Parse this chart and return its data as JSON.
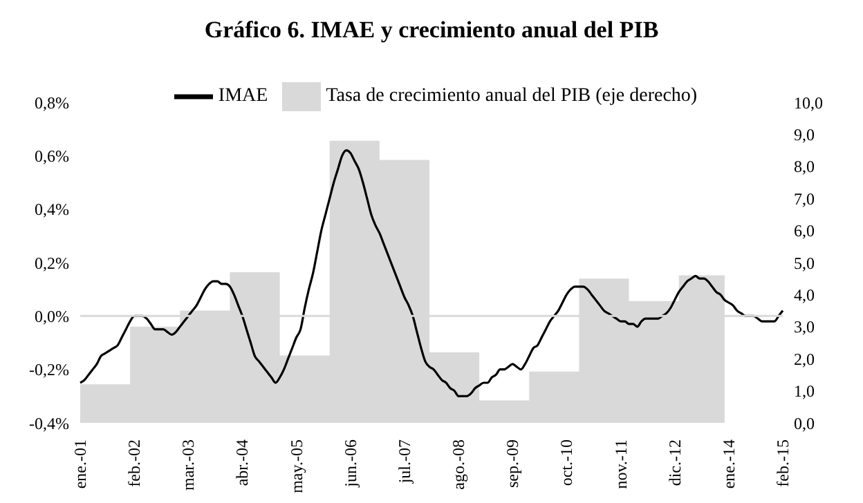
{
  "chart_data": {
    "type": "line",
    "title": "Gráfico 6. IMAE y crecimiento anual del PIB",
    "categories": [
      "ene.-01",
      null,
      null,
      null,
      null,
      null,
      null,
      null,
      null,
      null,
      null,
      null,
      null,
      "feb.-02",
      null,
      null,
      null,
      null,
      null,
      null,
      null,
      null,
      null,
      null,
      null,
      null,
      "mar.-03",
      null,
      null,
      null,
      null,
      null,
      null,
      null,
      null,
      null,
      null,
      null,
      null,
      "abr.-04",
      null,
      null,
      null,
      null,
      null,
      null,
      null,
      null,
      null,
      null,
      null,
      null,
      "may.-05",
      null,
      null,
      null,
      null,
      null,
      null,
      null,
      null,
      null,
      null,
      null,
      null,
      "jun.-06",
      null,
      null,
      null,
      null,
      null,
      null,
      null,
      null,
      null,
      null,
      null,
      null,
      "jul.-07",
      null,
      null,
      null,
      null,
      null,
      null,
      null,
      null,
      null,
      null,
      null,
      null,
      "ago.-08",
      null,
      null,
      null,
      null,
      null,
      null,
      null,
      null,
      null,
      null,
      null,
      null,
      "sep.-09",
      null,
      null,
      null,
      null,
      null,
      null,
      null,
      null,
      null,
      null,
      null,
      null,
      "oct.-10",
      null,
      null,
      null,
      null,
      null,
      null,
      null,
      null,
      null,
      null,
      null,
      null,
      "nov.-11",
      null,
      null,
      null,
      null,
      null,
      null,
      null,
      null,
      null,
      null,
      null,
      null,
      "dic.-12",
      null,
      null,
      null,
      null,
      null,
      null,
      null,
      null,
      null,
      null,
      null,
      null,
      "ene.-14",
      null,
      null,
      null,
      null,
      null,
      null,
      null,
      null,
      null,
      null,
      null,
      null,
      "feb.-15"
    ],
    "series": [
      {
        "name": "Tasa de crecimiento anual del PIB (eje derecho)",
        "type": "area",
        "axis": "y2",
        "color": "#d9d9d9",
        "values": [
          1.2,
          1.2,
          1.2,
          1.2,
          1.2,
          1.2,
          1.2,
          1.2,
          1.2,
          1.2,
          1.2,
          1.2,
          3.0,
          3.0,
          3.0,
          3.0,
          3.0,
          3.0,
          3.0,
          3.0,
          3.0,
          3.0,
          3.0,
          3.0,
          3.5,
          3.5,
          3.5,
          3.5,
          3.5,
          3.5,
          3.5,
          3.5,
          3.5,
          3.5,
          3.5,
          3.5,
          4.7,
          4.7,
          4.7,
          4.7,
          4.7,
          4.7,
          4.7,
          4.7,
          4.7,
          4.7,
          4.7,
          4.7,
          2.1,
          2.1,
          2.1,
          2.1,
          2.1,
          2.1,
          2.1,
          2.1,
          2.1,
          2.1,
          2.1,
          2.1,
          8.8,
          8.8,
          8.8,
          8.8,
          8.8,
          8.8,
          8.8,
          8.8,
          8.8,
          8.8,
          8.8,
          8.8,
          8.2,
          8.2,
          8.2,
          8.2,
          8.2,
          8.2,
          8.2,
          8.2,
          8.2,
          8.2,
          8.2,
          8.2,
          2.2,
          2.2,
          2.2,
          2.2,
          2.2,
          2.2,
          2.2,
          2.2,
          2.2,
          2.2,
          2.2,
          2.2,
          0.7,
          0.7,
          0.7,
          0.7,
          0.7,
          0.7,
          0.7,
          0.7,
          0.7,
          0.7,
          0.7,
          0.7,
          1.6,
          1.6,
          1.6,
          1.6,
          1.6,
          1.6,
          1.6,
          1.6,
          1.6,
          1.6,
          1.6,
          1.6,
          4.5,
          4.5,
          4.5,
          4.5,
          4.5,
          4.5,
          4.5,
          4.5,
          4.5,
          4.5,
          4.5,
          4.5,
          3.8,
          3.8,
          3.8,
          3.8,
          3.8,
          3.8,
          3.8,
          3.8,
          3.8,
          3.8,
          3.8,
          3.8,
          4.6,
          4.6,
          4.6,
          4.6,
          4.6,
          4.6,
          4.6,
          4.6,
          4.6,
          4.6,
          4.6,
          4.6,
          null,
          null,
          null,
          null,
          null,
          null,
          null,
          null,
          null,
          null,
          null,
          null,
          null,
          null
        ]
      },
      {
        "name": "IMAE",
        "color": "#000000",
        "values": [
          -0.25,
          -0.24,
          -0.22,
          -0.2,
          -0.18,
          -0.15,
          -0.14,
          -0.13,
          -0.12,
          -0.11,
          -0.08,
          -0.05,
          -0.02,
          0.0,
          0.0,
          0.0,
          -0.01,
          -0.03,
          -0.05,
          -0.05,
          -0.05,
          -0.06,
          -0.07,
          -0.06,
          -0.04,
          -0.02,
          0.0,
          0.02,
          0.04,
          0.07,
          0.1,
          0.12,
          0.13,
          0.13,
          0.12,
          0.12,
          0.11,
          0.08,
          0.04,
          0.0,
          -0.05,
          -0.1,
          -0.15,
          -0.17,
          -0.19,
          -0.21,
          -0.23,
          -0.25,
          -0.23,
          -0.2,
          -0.16,
          -0.12,
          -0.08,
          -0.05,
          0.03,
          0.1,
          0.16,
          0.24,
          0.32,
          0.38,
          0.44,
          0.5,
          0.55,
          0.6,
          0.62,
          0.61,
          0.58,
          0.55,
          0.5,
          0.44,
          0.38,
          0.34,
          0.31,
          0.27,
          0.23,
          0.19,
          0.15,
          0.11,
          0.07,
          0.04,
          0.0,
          -0.06,
          -0.12,
          -0.17,
          -0.19,
          -0.2,
          -0.22,
          -0.24,
          -0.25,
          -0.27,
          -0.28,
          -0.3,
          -0.3,
          -0.3,
          -0.29,
          -0.27,
          -0.26,
          -0.25,
          -0.25,
          -0.23,
          -0.22,
          -0.2,
          -0.2,
          -0.19,
          -0.18,
          -0.19,
          -0.2,
          -0.18,
          -0.15,
          -0.12,
          -0.11,
          -0.08,
          -0.05,
          -0.02,
          0.0,
          0.02,
          0.05,
          0.08,
          0.1,
          0.11,
          0.11,
          0.11,
          0.1,
          0.08,
          0.06,
          0.04,
          0.02,
          0.01,
          0.0,
          -0.01,
          -0.02,
          -0.02,
          -0.03,
          -0.03,
          -0.04,
          -0.02,
          -0.01,
          -0.01,
          -0.01,
          -0.01,
          0.0,
          0.01,
          0.03,
          0.06,
          0.09,
          0.11,
          0.13,
          0.14,
          0.15,
          0.14,
          0.14,
          0.13,
          0.11,
          0.09,
          0.08,
          0.06,
          0.05,
          0.04,
          0.02,
          0.01,
          0.0,
          0.0,
          0.0,
          -0.01,
          -0.02,
          -0.02,
          -0.02,
          -0.02,
          0.0,
          0.02
        ]
      }
    ],
    "ylim": [
      -0.4,
      0.8
    ],
    "yticks": [
      {
        "value": -0.4,
        "label": "-0,4%"
      },
      {
        "value": -0.2,
        "label": "-0,2%"
      },
      {
        "value": 0,
        "label": "0,0%"
      },
      {
        "value": 0.2,
        "label": "0,2%"
      },
      {
        "value": 0.4,
        "label": "0,4%"
      },
      {
        "value": 0.6,
        "label": "0,6%"
      },
      {
        "value": 0.8,
        "label": "0,8%"
      }
    ],
    "y2lim": [
      0,
      10
    ],
    "y2ticks": [
      {
        "value": 0,
        "label": "0,0"
      },
      {
        "value": 1,
        "label": "1,0"
      },
      {
        "value": 2,
        "label": "2,0"
      },
      {
        "value": 3,
        "label": "3,0"
      },
      {
        "value": 4,
        "label": "4,0"
      },
      {
        "value": 5,
        "label": "5,0"
      },
      {
        "value": 6,
        "label": "6,0"
      },
      {
        "value": 7,
        "label": "7,0"
      },
      {
        "value": 8,
        "label": "8,0"
      },
      {
        "value": 9,
        "label": "9,0"
      },
      {
        "value": 10,
        "label": "10,0"
      }
    ],
    "ref_lines": [
      {
        "axis": "y",
        "value": 0,
        "color": "#d9d9d9"
      }
    ],
    "legend": "top",
    "marker": "none"
  }
}
